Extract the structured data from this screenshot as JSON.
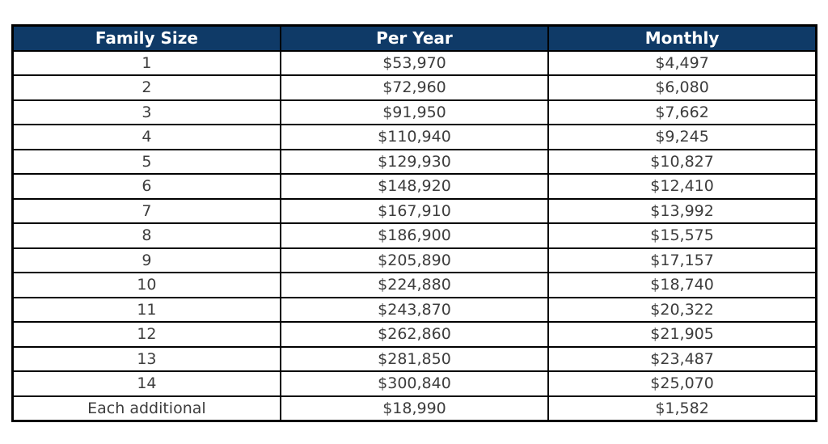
{
  "page": {
    "background": "#ffffff"
  },
  "table": {
    "columns": [
      "Family Size",
      "Per Year",
      "Monthly"
    ],
    "rows": [
      [
        "1",
        "$53,970",
        "$4,497"
      ],
      [
        "2",
        "$72,960",
        "$6,080"
      ],
      [
        "3",
        "$91,950",
        "$7,662"
      ],
      [
        "4",
        "$110,940",
        "$9,245"
      ],
      [
        "5",
        "$129,930",
        "$10,827"
      ],
      [
        "6",
        "$148,920",
        "$12,410"
      ],
      [
        "7",
        "$167,910",
        "$13,992"
      ],
      [
        "8",
        "$186,900",
        "$15,575"
      ],
      [
        "9",
        "$205,890",
        "$17,157"
      ],
      [
        "10",
        "$224,880",
        "$18,740"
      ],
      [
        "11",
        "$243,870",
        "$20,322"
      ],
      [
        "12",
        "$262,860",
        "$21,905"
      ],
      [
        "13",
        "$281,850",
        "$23,487"
      ],
      [
        "14",
        "$300,840",
        "$25,070"
      ],
      [
        "Each additional",
        "$18,990",
        "$1,582"
      ]
    ],
    "colors": {
      "header_bg": "#0f3a67",
      "header_text": "#ffffff",
      "body_text": "#3d3d3d",
      "border": "#000000"
    }
  },
  "chart_data": {
    "type": "table",
    "columns": [
      "Family Size",
      "Per Year",
      "Monthly"
    ],
    "rows": [
      {
        "family_size": "1",
        "per_year": 53970,
        "monthly": 4497
      },
      {
        "family_size": "2",
        "per_year": 72960,
        "monthly": 6080
      },
      {
        "family_size": "3",
        "per_year": 91950,
        "monthly": 7662
      },
      {
        "family_size": "4",
        "per_year": 110940,
        "monthly": 9245
      },
      {
        "family_size": "5",
        "per_year": 129930,
        "monthly": 10827
      },
      {
        "family_size": "6",
        "per_year": 148920,
        "monthly": 12410
      },
      {
        "family_size": "7",
        "per_year": 167910,
        "monthly": 13992
      },
      {
        "family_size": "8",
        "per_year": 186900,
        "monthly": 15575
      },
      {
        "family_size": "9",
        "per_year": 205890,
        "monthly": 17157
      },
      {
        "family_size": "10",
        "per_year": 224880,
        "monthly": 18740
      },
      {
        "family_size": "11",
        "per_year": 243870,
        "monthly": 20322
      },
      {
        "family_size": "12",
        "per_year": 262860,
        "monthly": 21905
      },
      {
        "family_size": "13",
        "per_year": 281850,
        "monthly": 23487
      },
      {
        "family_size": "14",
        "per_year": 300840,
        "monthly": 25070
      },
      {
        "family_size": "Each additional",
        "per_year": 18990,
        "monthly": 1582
      }
    ]
  }
}
